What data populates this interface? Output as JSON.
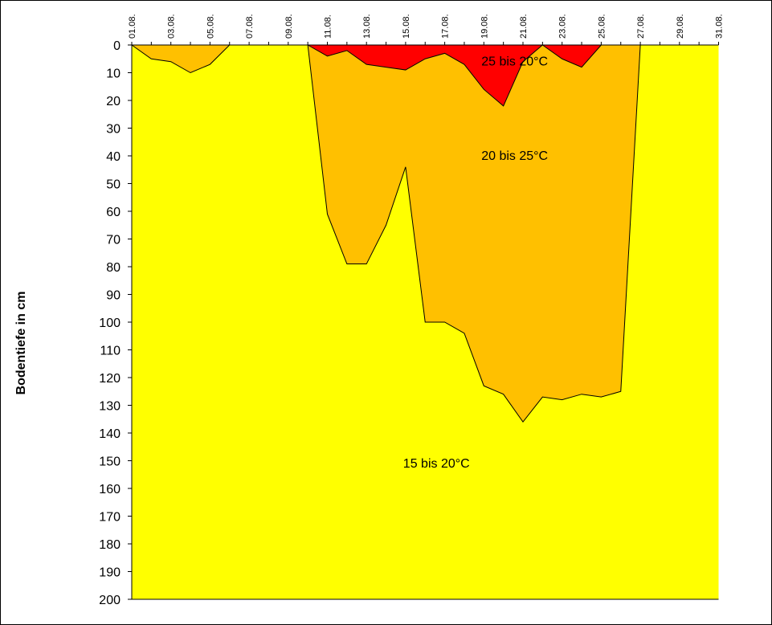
{
  "chart_data": {
    "type": "area",
    "title": "",
    "xlabel": "",
    "ylabel": "Bodentiefe in cm",
    "x_tick_labels": [
      "01.08.",
      "03.08.",
      "05.08.",
      "07.08.",
      "09.08.",
      "11.08.",
      "13.08.",
      "15.08.",
      "17.08.",
      "19.08.",
      "21.08.",
      "23.08.",
      "25.08.",
      "27.08.",
      "29.08.",
      "31.08."
    ],
    "y_ticks": [
      0,
      10,
      20,
      30,
      40,
      50,
      60,
      70,
      80,
      90,
      100,
      110,
      120,
      130,
      140,
      150,
      160,
      170,
      180,
      190,
      200
    ],
    "ylim": [
      0,
      200
    ],
    "y_inverted": true,
    "grid": false,
    "colors": {
      "zone_15_20": "#FFFF00",
      "zone_20_25": "#FFC000",
      "zone_25_plus": "#FF0000"
    },
    "series": [
      {
        "name": "15 bis 20°C",
        "color": "#FFFF00",
        "depth_from": [
          0,
          0,
          0,
          0,
          0,
          0,
          0,
          0,
          0,
          0,
          0,
          0,
          0,
          0,
          0,
          0,
          0,
          0,
          0,
          0,
          0,
          0,
          0,
          0,
          0,
          0,
          0,
          0,
          0,
          0,
          0
        ],
        "depth_to": [
          200,
          200,
          200,
          200,
          200,
          200,
          200,
          200,
          200,
          200,
          200,
          200,
          200,
          200,
          200,
          200,
          200,
          200,
          200,
          200,
          200,
          200,
          200,
          200,
          200,
          200,
          200,
          200,
          200,
          200,
          200
        ]
      },
      {
        "name": "20 bis 25°C",
        "color": "#FFC000",
        "segments": [
          {
            "x": [
              "01.08.",
              "02.08.",
              "03.08.",
              "04.08.",
              "05.08.",
              "06.08."
            ],
            "depth": [
              0,
              5,
              6,
              10,
              7,
              0
            ]
          },
          {
            "x": [
              "10.08.",
              "11.08.",
              "12.08.",
              "13.08.",
              "14.08.",
              "15.08.",
              "16.08.",
              "17.08.",
              "18.08.",
              "19.08.",
              "20.08.",
              "21.08.",
              "22.08.",
              "23.08.",
              "24.08.",
              "25.08.",
              "26.08.",
              "27.08."
            ],
            "depth": [
              0,
              61,
              79,
              79,
              65,
              44,
              100,
              100,
              104,
              123,
              126,
              136,
              127,
              128,
              126,
              127,
              125,
              0
            ]
          }
        ]
      },
      {
        "name": "25 bis 20°C",
        "color": "#FF0000",
        "segments": [
          {
            "x": [
              "10.08.",
              "11.08.",
              "12.08.",
              "13.08.",
              "14.08.",
              "15.08.",
              "16.08.",
              "17.08.",
              "18.08.",
              "19.08.",
              "20.08.",
              "21.08.",
              "22.08."
            ],
            "depth": [
              0,
              4,
              2,
              7,
              8,
              9,
              5,
              3,
              7,
              16,
              22,
              6,
              0
            ]
          },
          {
            "x": [
              "22.08.",
              "23.08.",
              "24.08.",
              "25.08."
            ],
            "depth": [
              0,
              5,
              8,
              0
            ]
          }
        ]
      }
    ],
    "annotations": [
      {
        "text": "25 bis 20°C",
        "x": "20.08.",
        "depth": 6
      },
      {
        "text": "20 bis 25°C",
        "x": "20.08.",
        "depth": 40
      },
      {
        "text": "15 bis 20°C",
        "x": "16.08.",
        "depth": 151
      }
    ]
  }
}
